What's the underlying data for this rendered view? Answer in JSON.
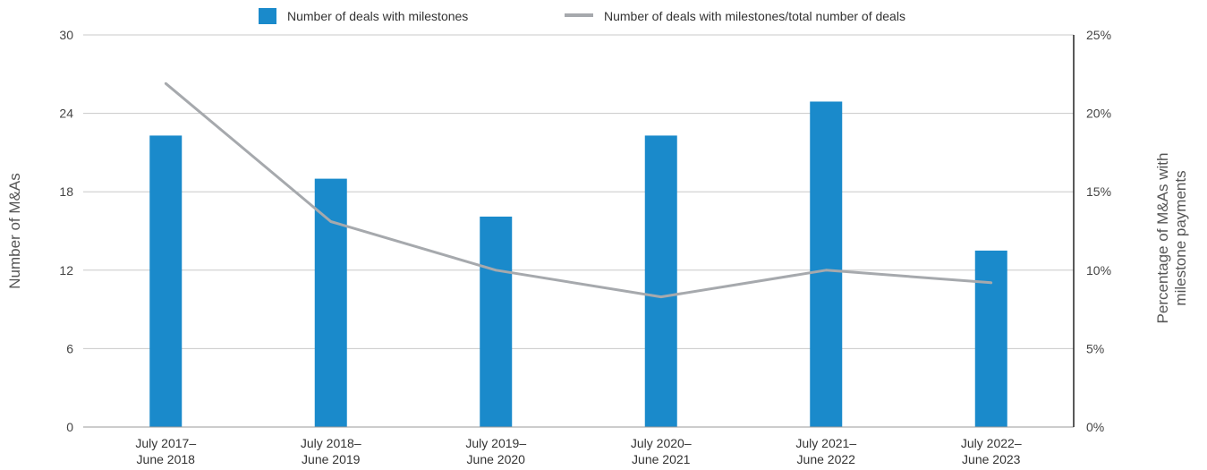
{
  "chart_data": {
    "type": "bar",
    "categories": [
      [
        "July 2017–",
        "June 2018"
      ],
      [
        "July 2018–",
        "June 2019"
      ],
      [
        "July 2019–",
        "June 2020"
      ],
      [
        "July 2020–",
        "June 2021"
      ],
      [
        "July 2021–",
        "June 2022"
      ],
      [
        "July 2022–",
        "June 2023"
      ]
    ],
    "series": [
      {
        "name": "Number of deals with milestones",
        "type": "bar",
        "axis": "left",
        "color": "#1a8acb",
        "values": [
          22.3,
          19,
          16.1,
          22.3,
          24.9,
          13.5
        ]
      },
      {
        "name": "Number of deals with milestones/total number of deals",
        "type": "line",
        "axis": "right",
        "color": "#a6a9ad",
        "values": [
          21.9,
          13.1,
          10.0,
          8.3,
          10.0,
          9.2
        ]
      }
    ],
    "ylabel": "Number of M&As",
    "ylabel_right": [
      "Percentage of M&As with",
      "milestone payments"
    ],
    "ylim": [
      0,
      30
    ],
    "yticks": [
      "0",
      "6",
      "12",
      "18",
      "24",
      "30"
    ],
    "ylim_right": [
      0,
      25
    ],
    "yticks_right": [
      "0%",
      "5%",
      "10%",
      "15%",
      "20%",
      "25%"
    ],
    "grid": true,
    "legend_position": "top"
  }
}
